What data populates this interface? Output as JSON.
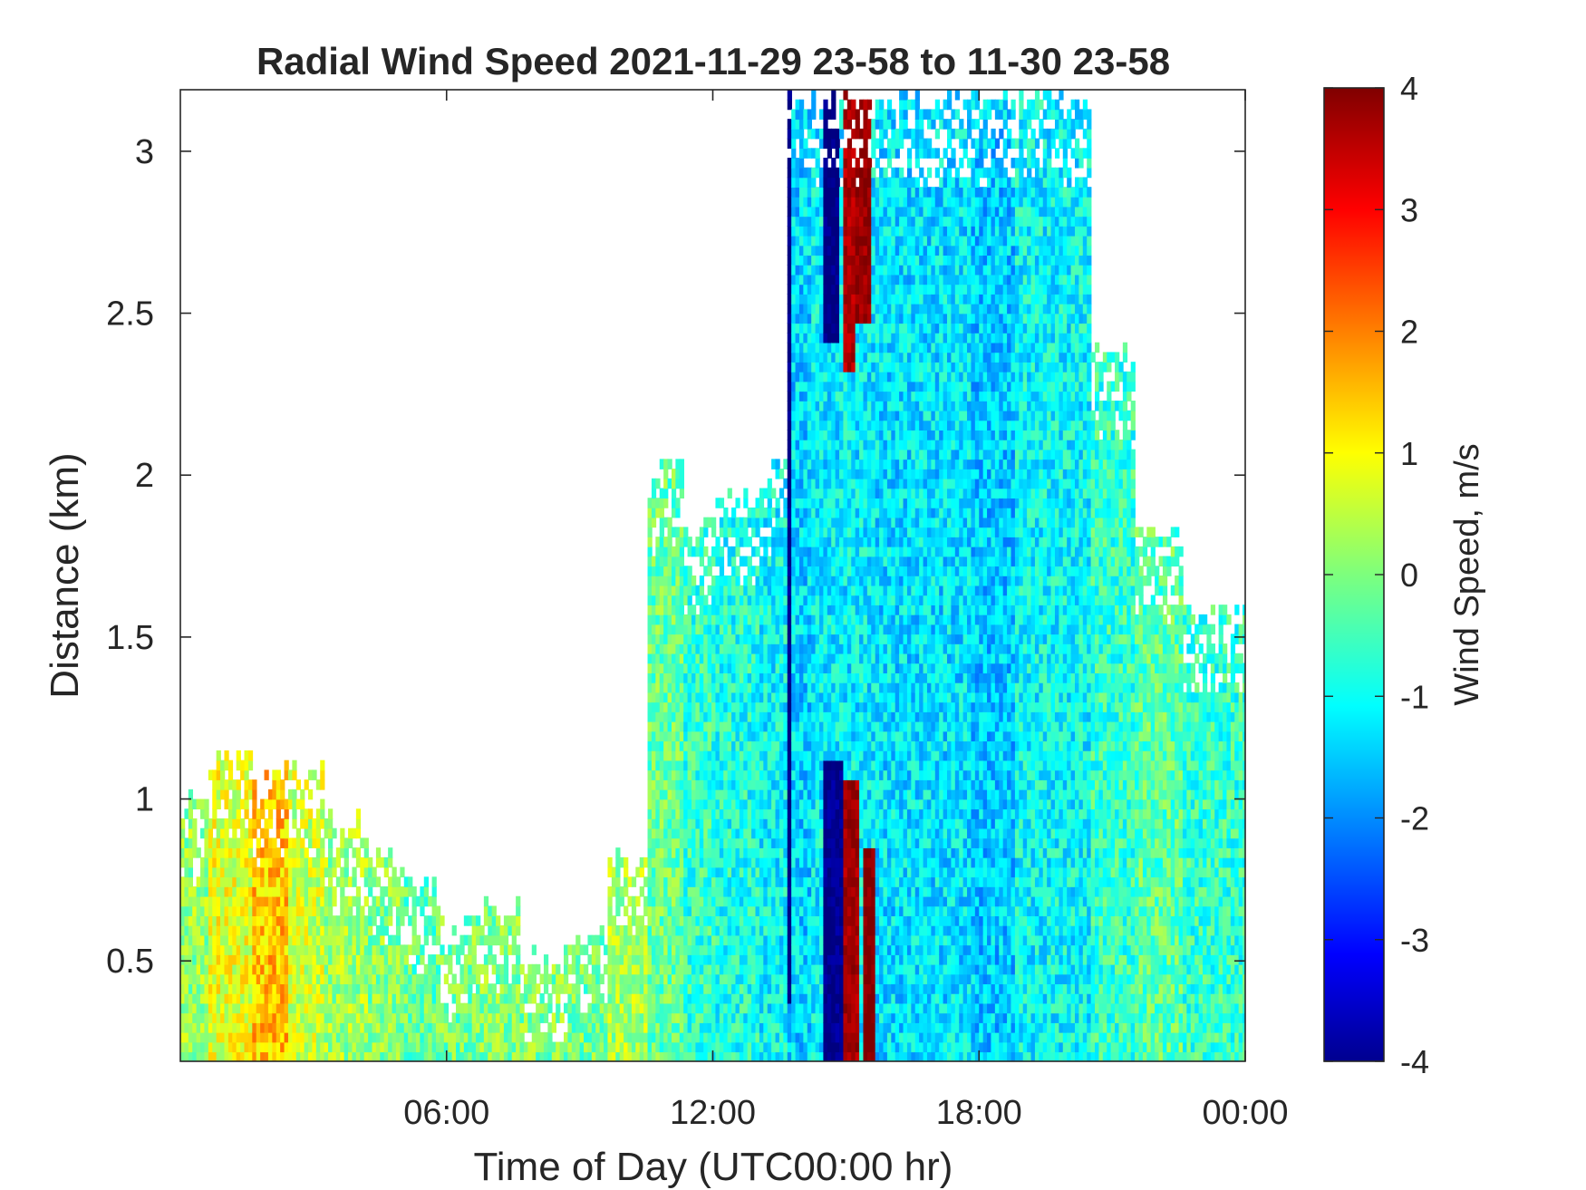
{
  "chart_data": {
    "type": "heatmap",
    "title": "Radial Wind Speed 2021-11-29 23-58 to 11-30 23-58",
    "xlabel": "Time of Day (UTC00:00 hr)",
    "ylabel": "Distance (km)",
    "x_ticks": [
      {
        "value": 6,
        "label": "06:00"
      },
      {
        "value": 12,
        "label": "12:00"
      },
      {
        "value": 18,
        "label": "18:00"
      },
      {
        "value": 24,
        "label": "00:00"
      }
    ],
    "y_ticks": [
      {
        "value": 0.5,
        "label": "0.5"
      },
      {
        "value": 1,
        "label": "1"
      },
      {
        "value": 1.5,
        "label": "1.5"
      },
      {
        "value": 2,
        "label": "2"
      },
      {
        "value": 2.5,
        "label": "2.5"
      },
      {
        "value": 3,
        "label": "3"
      }
    ],
    "xlim": [
      0,
      24
    ],
    "ylim": [
      0.19,
      3.19
    ],
    "colorbar": {
      "label": "Wind Speed, m/s",
      "colormap": "jet",
      "clim": [
        -4,
        4
      ],
      "ticks": [
        {
          "value": 4,
          "label": "4"
        },
        {
          "value": 3,
          "label": "3"
        },
        {
          "value": 2,
          "label": "2"
        },
        {
          "value": 1,
          "label": "1"
        },
        {
          "value": 0,
          "label": "0"
        },
        {
          "value": -1,
          "label": "-1"
        },
        {
          "value": -2,
          "label": "-2"
        },
        {
          "value": -3,
          "label": "-3"
        },
        {
          "value": -4,
          "label": "-4"
        }
      ]
    },
    "grid": false,
    "time_coverage_hours": [
      [
        0.0,
        0.6,
        1.05,
        0.15
      ],
      [
        0.6,
        1.6,
        1.15,
        0.8
      ],
      [
        1.6,
        2.4,
        1.1,
        1.5
      ],
      [
        2.4,
        3.2,
        1.12,
        0.6
      ],
      [
        3.2,
        4.2,
        0.95,
        0.25
      ],
      [
        4.2,
        5.0,
        0.85,
        0.05
      ],
      [
        5.0,
        5.8,
        0.75,
        -0.2
      ],
      [
        5.8,
        6.5,
        0.62,
        -0.1
      ],
      [
        6.5,
        7.6,
        0.7,
        0.0
      ],
      [
        7.6,
        8.6,
        0.55,
        0.0
      ],
      [
        8.6,
        9.6,
        0.6,
        -0.1
      ],
      [
        9.6,
        10.5,
        0.85,
        0.3
      ],
      [
        10.5,
        11.3,
        2.05,
        -0.2
      ],
      [
        11.3,
        12.0,
        1.85,
        -0.6
      ],
      [
        12.0,
        13.0,
        1.95,
        -0.8
      ],
      [
        13.0,
        13.6,
        2.05,
        -1.0
      ],
      [
        13.6,
        14.2,
        3.19,
        -1.3
      ],
      [
        14.2,
        15.6,
        3.19,
        -1.1
      ],
      [
        15.6,
        17.8,
        3.19,
        -1.2
      ],
      [
        17.8,
        18.8,
        3.19,
        -1.4
      ],
      [
        18.8,
        20.5,
        3.19,
        -1.0
      ],
      [
        20.5,
        21.5,
        2.4,
        -0.6
      ],
      [
        21.5,
        22.5,
        1.85,
        -0.3
      ],
      [
        22.5,
        24.0,
        1.6,
        -0.6
      ]
    ],
    "strong_bands_hours": [
      [
        14.4,
        14.8,
        2.4,
        3.19,
        -4.0
      ],
      [
        14.9,
        15.2,
        2.3,
        3.19,
        3.6
      ],
      [
        15.2,
        15.55,
        2.45,
        3.19,
        3.8
      ],
      [
        14.45,
        14.9,
        0.19,
        1.1,
        -3.9
      ],
      [
        14.9,
        15.25,
        0.19,
        1.05,
        3.7
      ],
      [
        15.3,
        15.6,
        0.19,
        0.85,
        4.0
      ],
      [
        13.6,
        13.72,
        0.35,
        3.19,
        -4.0
      ]
    ]
  }
}
